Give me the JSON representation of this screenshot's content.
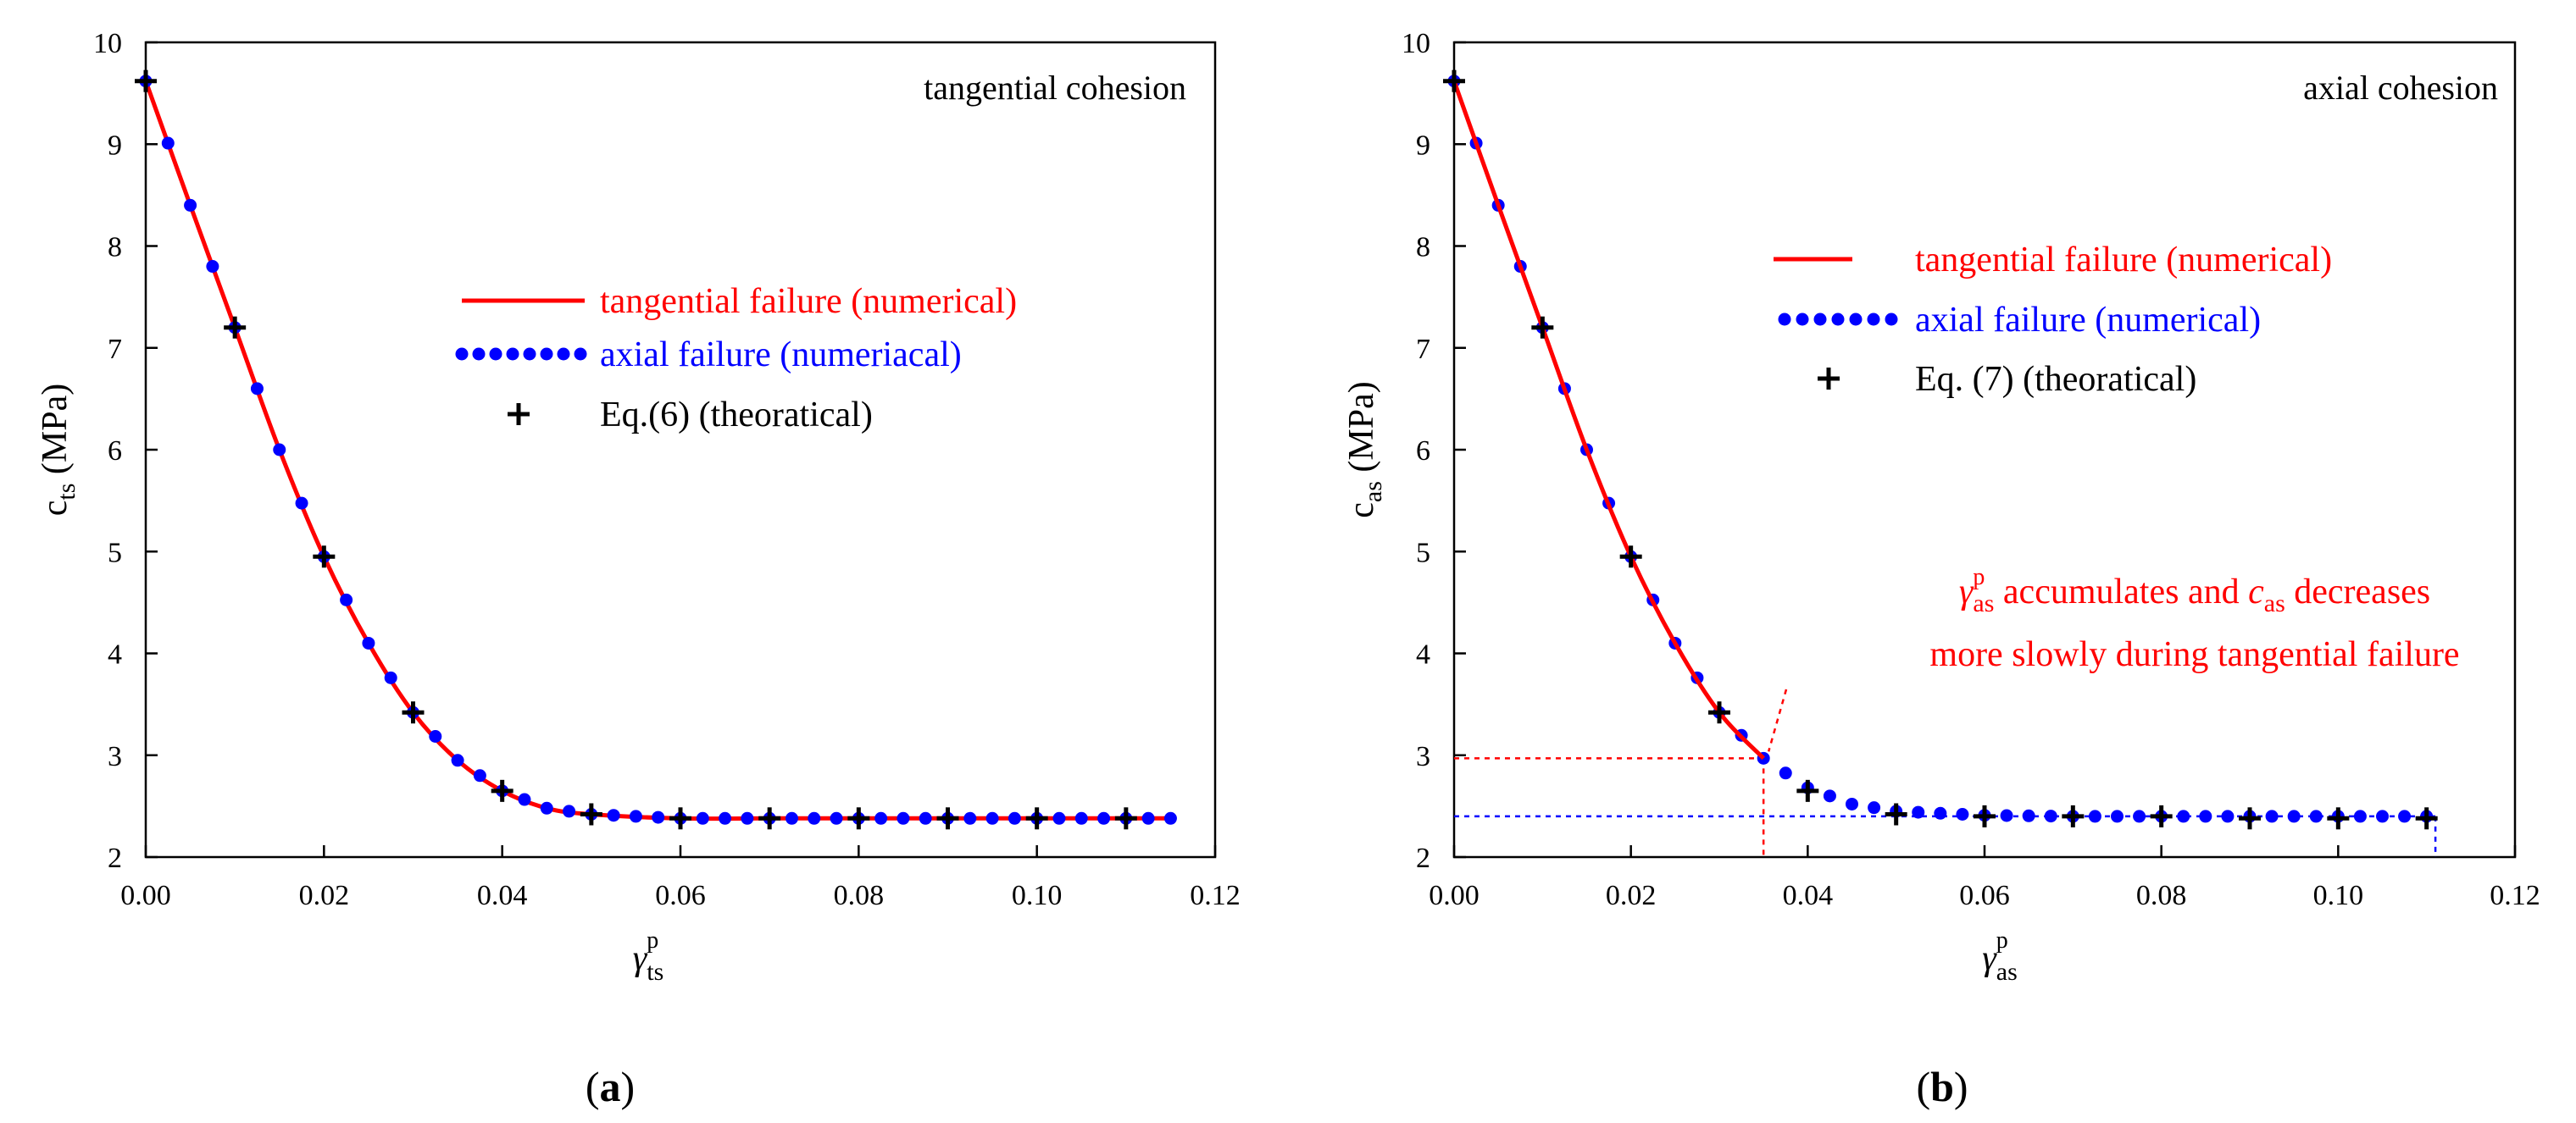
{
  "chart_data": [
    {
      "type": "line",
      "panel_label_open": "(",
      "panel_label_letter": "a",
      "panel_label_close": ")",
      "corner_label": "tangential cohesion",
      "ylabel_main": "c",
      "ylabel_sub": "ts",
      "ylabel_unit": " (MPa)",
      "xlabel_main": "γ",
      "xlabel_sub": "ts",
      "xlabel_sup": "p",
      "xlim": [
        0,
        0.12
      ],
      "ylim": [
        2,
        10
      ],
      "xticks": [
        "0.00",
        "0.02",
        "0.04",
        "0.06",
        "0.08",
        "0.10",
        "0.12"
      ],
      "yticks": [
        "2",
        "3",
        "4",
        "5",
        "6",
        "7",
        "8",
        "9",
        "10"
      ],
      "legend": [
        {
          "label": "tangential failure (numerical)",
          "color": "#ff0000",
          "style": "line"
        },
        {
          "label": "axial failure (numeriacal)",
          "color": "#0000ff",
          "style": "dots"
        },
        {
          "label": "Eq.(6)  (theoratical)",
          "color": "#000000",
          "style": "plus"
        }
      ],
      "series": [
        {
          "name": "tangential failure (numerical)",
          "x": [
            0,
            0.005,
            0.01,
            0.015,
            0.02,
            0.025,
            0.03,
            0.035,
            0.04,
            0.045,
            0.05,
            0.06,
            0.07,
            0.08,
            0.09,
            0.1,
            0.11,
            0.115
          ],
          "y": [
            9.62,
            8.4,
            7.2,
            6.0,
            4.95,
            4.1,
            3.42,
            2.95,
            2.65,
            2.48,
            2.42,
            2.38,
            2.38,
            2.38,
            2.38,
            2.38,
            2.38,
            2.38
          ]
        },
        {
          "name": "axial failure (numeriacal)",
          "x_start": 0,
          "x_end": 0.115,
          "step": 0.0025
        },
        {
          "name": "Eq.(6)  (theoratical)",
          "x": [
            0,
            0.01,
            0.02,
            0.03,
            0.04,
            0.05,
            0.06,
            0.07,
            0.08,
            0.09,
            0.1,
            0.11
          ],
          "y": [
            9.62,
            7.2,
            4.95,
            3.42,
            2.65,
            2.42,
            2.38,
            2.38,
            2.38,
            2.38,
            2.38,
            2.38
          ]
        }
      ]
    },
    {
      "type": "line",
      "panel_label_open": "(",
      "panel_label_letter": "b",
      "panel_label_close": ")",
      "corner_label": "axial cohesion",
      "ylabel_main": "c",
      "ylabel_sub": "as",
      "ylabel_unit": " (MPa)",
      "xlabel_main": "γ",
      "xlabel_sub": "as",
      "xlabel_sup": "p",
      "xlim": [
        0,
        0.12
      ],
      "ylim": [
        2,
        10
      ],
      "xticks": [
        "0.00",
        "0.02",
        "0.04",
        "0.06",
        "0.08",
        "0.10",
        "0.12"
      ],
      "yticks": [
        "2",
        "3",
        "4",
        "5",
        "6",
        "7",
        "8",
        "9",
        "10"
      ],
      "legend": [
        {
          "label": "tangential failure (numerical)",
          "color": "#ff0000",
          "style": "line"
        },
        {
          "label": "axial failure (numerical)",
          "color": "#0000ff",
          "style": "dots"
        },
        {
          "label": "Eq. (7) (theoratical)",
          "color": "#000000",
          "style": "plus"
        }
      ],
      "annotation": {
        "line1_gamma": "γ",
        "line1_sub": "as",
        "line1_sup": "p",
        "line1_mid": " accumulates and ",
        "line1_c": "c",
        "line1_csub": "as",
        "line1_end": " decreases",
        "line2": "more slowly during  tangential failure",
        "target_x": 0.035,
        "target_y": 2.97
      },
      "reference_lines": [
        {
          "color": "#ff0000",
          "x": 0.035,
          "y": 2.97
        },
        {
          "color": "#0000ff",
          "x": 0.111,
          "y": 2.4
        }
      ],
      "series": [
        {
          "name": "tangential failure (numerical)",
          "x": [
            0,
            0.005,
            0.01,
            0.015,
            0.02,
            0.025,
            0.03,
            0.035
          ],
          "y": [
            9.62,
            8.4,
            7.2,
            6.0,
            4.95,
            4.1,
            3.42,
            2.97
          ]
        },
        {
          "name": "axial failure (numerical)",
          "x": [
            0,
            0.005,
            0.01,
            0.015,
            0.02,
            0.025,
            0.03,
            0.035,
            0.04,
            0.045,
            0.05,
            0.06,
            0.07,
            0.08,
            0.09,
            0.1,
            0.111
          ],
          "y": [
            9.62,
            8.4,
            7.2,
            6.0,
            4.95,
            4.1,
            3.42,
            2.97,
            2.68,
            2.52,
            2.45,
            2.41,
            2.4,
            2.4,
            2.4,
            2.4,
            2.4
          ]
        },
        {
          "name": "Eq. (7) (theoratical)",
          "x": [
            0,
            0.01,
            0.02,
            0.03,
            0.04,
            0.05,
            0.06,
            0.07,
            0.08,
            0.09,
            0.1,
            0.11
          ],
          "y": [
            9.62,
            7.2,
            4.95,
            3.42,
            2.65,
            2.42,
            2.4,
            2.4,
            2.4,
            2.38,
            2.38,
            2.38
          ]
        }
      ]
    }
  ]
}
